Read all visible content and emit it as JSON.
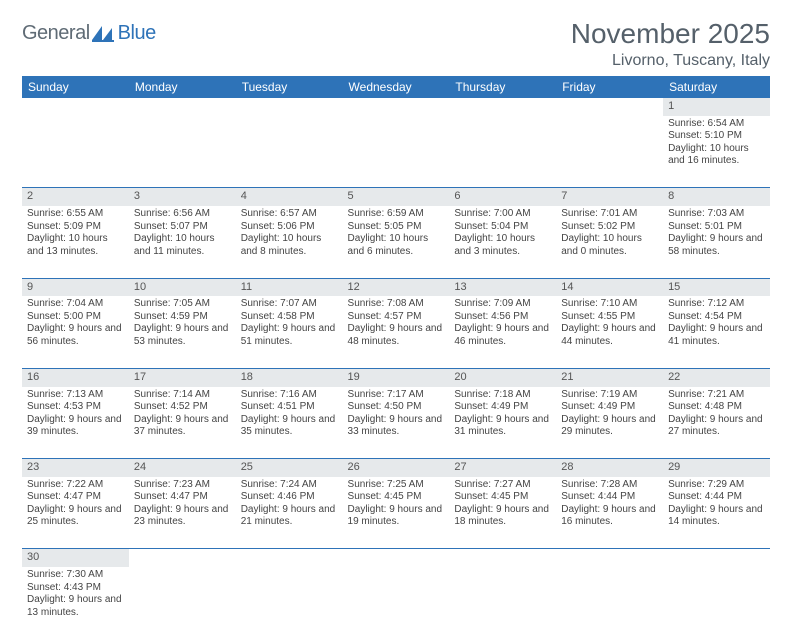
{
  "logo": {
    "part1": "General",
    "part2": "Blue"
  },
  "title": {
    "month": "November 2025",
    "location": "Livorno, Tuscany, Italy"
  },
  "colors": {
    "header_bg": "#2e73b8",
    "header_text": "#ffffff",
    "daynum_bg": "#e6e9eb",
    "rule": "#2e73b8",
    "text": "#444444",
    "heading_text": "#55606a"
  },
  "day_headers": [
    "Sunday",
    "Monday",
    "Tuesday",
    "Wednesday",
    "Thursday",
    "Friday",
    "Saturday"
  ],
  "weeks": [
    {
      "nums": [
        "",
        "",
        "",
        "",
        "",
        "",
        "1"
      ],
      "cells": [
        null,
        null,
        null,
        null,
        null,
        null,
        {
          "sunrise": "6:54 AM",
          "sunset": "5:10 PM",
          "daylight": "10 hours and 16 minutes."
        }
      ]
    },
    {
      "nums": [
        "2",
        "3",
        "4",
        "5",
        "6",
        "7",
        "8"
      ],
      "cells": [
        {
          "sunrise": "6:55 AM",
          "sunset": "5:09 PM",
          "daylight": "10 hours and 13 minutes."
        },
        {
          "sunrise": "6:56 AM",
          "sunset": "5:07 PM",
          "daylight": "10 hours and 11 minutes."
        },
        {
          "sunrise": "6:57 AM",
          "sunset": "5:06 PM",
          "daylight": "10 hours and 8 minutes."
        },
        {
          "sunrise": "6:59 AM",
          "sunset": "5:05 PM",
          "daylight": "10 hours and 6 minutes."
        },
        {
          "sunrise": "7:00 AM",
          "sunset": "5:04 PM",
          "daylight": "10 hours and 3 minutes."
        },
        {
          "sunrise": "7:01 AM",
          "sunset": "5:02 PM",
          "daylight": "10 hours and 0 minutes."
        },
        {
          "sunrise": "7:03 AM",
          "sunset": "5:01 PM",
          "daylight": "9 hours and 58 minutes."
        }
      ]
    },
    {
      "nums": [
        "9",
        "10",
        "11",
        "12",
        "13",
        "14",
        "15"
      ],
      "cells": [
        {
          "sunrise": "7:04 AM",
          "sunset": "5:00 PM",
          "daylight": "9 hours and 56 minutes."
        },
        {
          "sunrise": "7:05 AM",
          "sunset": "4:59 PM",
          "daylight": "9 hours and 53 minutes."
        },
        {
          "sunrise": "7:07 AM",
          "sunset": "4:58 PM",
          "daylight": "9 hours and 51 minutes."
        },
        {
          "sunrise": "7:08 AM",
          "sunset": "4:57 PM",
          "daylight": "9 hours and 48 minutes."
        },
        {
          "sunrise": "7:09 AM",
          "sunset": "4:56 PM",
          "daylight": "9 hours and 46 minutes."
        },
        {
          "sunrise": "7:10 AM",
          "sunset": "4:55 PM",
          "daylight": "9 hours and 44 minutes."
        },
        {
          "sunrise": "7:12 AM",
          "sunset": "4:54 PM",
          "daylight": "9 hours and 41 minutes."
        }
      ]
    },
    {
      "nums": [
        "16",
        "17",
        "18",
        "19",
        "20",
        "21",
        "22"
      ],
      "cells": [
        {
          "sunrise": "7:13 AM",
          "sunset": "4:53 PM",
          "daylight": "9 hours and 39 minutes."
        },
        {
          "sunrise": "7:14 AM",
          "sunset": "4:52 PM",
          "daylight": "9 hours and 37 minutes."
        },
        {
          "sunrise": "7:16 AM",
          "sunset": "4:51 PM",
          "daylight": "9 hours and 35 minutes."
        },
        {
          "sunrise": "7:17 AM",
          "sunset": "4:50 PM",
          "daylight": "9 hours and 33 minutes."
        },
        {
          "sunrise": "7:18 AM",
          "sunset": "4:49 PM",
          "daylight": "9 hours and 31 minutes."
        },
        {
          "sunrise": "7:19 AM",
          "sunset": "4:49 PM",
          "daylight": "9 hours and 29 minutes."
        },
        {
          "sunrise": "7:21 AM",
          "sunset": "4:48 PM",
          "daylight": "9 hours and 27 minutes."
        }
      ]
    },
    {
      "nums": [
        "23",
        "24",
        "25",
        "26",
        "27",
        "28",
        "29"
      ],
      "cells": [
        {
          "sunrise": "7:22 AM",
          "sunset": "4:47 PM",
          "daylight": "9 hours and 25 minutes."
        },
        {
          "sunrise": "7:23 AM",
          "sunset": "4:47 PM",
          "daylight": "9 hours and 23 minutes."
        },
        {
          "sunrise": "7:24 AM",
          "sunset": "4:46 PM",
          "daylight": "9 hours and 21 minutes."
        },
        {
          "sunrise": "7:25 AM",
          "sunset": "4:45 PM",
          "daylight": "9 hours and 19 minutes."
        },
        {
          "sunrise": "7:27 AM",
          "sunset": "4:45 PM",
          "daylight": "9 hours and 18 minutes."
        },
        {
          "sunrise": "7:28 AM",
          "sunset": "4:44 PM",
          "daylight": "9 hours and 16 minutes."
        },
        {
          "sunrise": "7:29 AM",
          "sunset": "4:44 PM",
          "daylight": "9 hours and 14 minutes."
        }
      ]
    },
    {
      "nums": [
        "30",
        "",
        "",
        "",
        "",
        "",
        ""
      ],
      "cells": [
        {
          "sunrise": "7:30 AM",
          "sunset": "4:43 PM",
          "daylight": "9 hours and 13 minutes."
        },
        null,
        null,
        null,
        null,
        null,
        null
      ],
      "last": true
    }
  ]
}
